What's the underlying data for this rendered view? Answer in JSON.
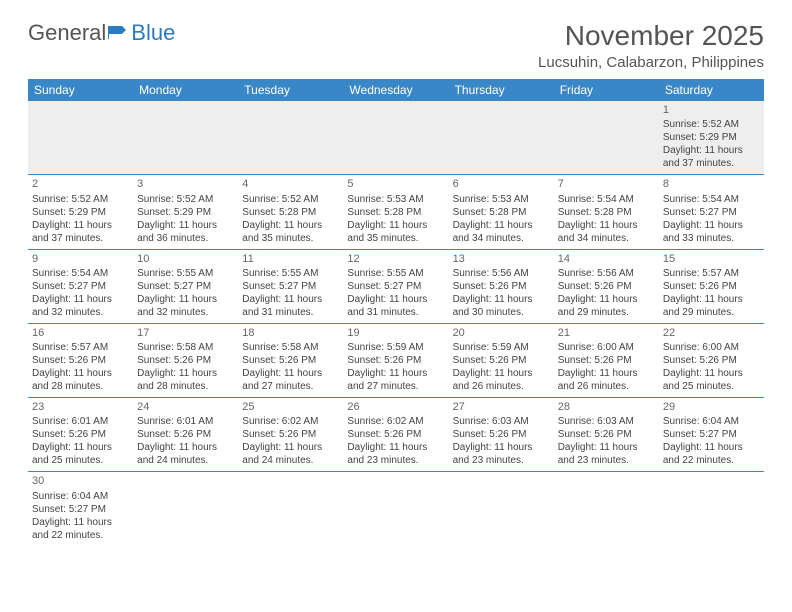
{
  "logo": {
    "text1": "General",
    "text2": "Blue"
  },
  "title": "November 2025",
  "location": "Lucsuhin, Calabarzon, Philippines",
  "header_bg": "#3a87c7",
  "header_fg": "#ffffff",
  "day_border": "#3a87c7",
  "weekdays": [
    "Sunday",
    "Monday",
    "Tuesday",
    "Wednesday",
    "Thursday",
    "Friday",
    "Saturday"
  ],
  "weeks": [
    [
      null,
      null,
      null,
      null,
      null,
      null,
      {
        "n": "1",
        "sr": "5:52 AM",
        "ss": "5:29 PM",
        "dl": "11 hours and 37 minutes."
      }
    ],
    [
      {
        "n": "2",
        "sr": "5:52 AM",
        "ss": "5:29 PM",
        "dl": "11 hours and 37 minutes."
      },
      {
        "n": "3",
        "sr": "5:52 AM",
        "ss": "5:29 PM",
        "dl": "11 hours and 36 minutes."
      },
      {
        "n": "4",
        "sr": "5:52 AM",
        "ss": "5:28 PM",
        "dl": "11 hours and 35 minutes."
      },
      {
        "n": "5",
        "sr": "5:53 AM",
        "ss": "5:28 PM",
        "dl": "11 hours and 35 minutes."
      },
      {
        "n": "6",
        "sr": "5:53 AM",
        "ss": "5:28 PM",
        "dl": "11 hours and 34 minutes."
      },
      {
        "n": "7",
        "sr": "5:54 AM",
        "ss": "5:28 PM",
        "dl": "11 hours and 34 minutes."
      },
      {
        "n": "8",
        "sr": "5:54 AM",
        "ss": "5:27 PM",
        "dl": "11 hours and 33 minutes."
      }
    ],
    [
      {
        "n": "9",
        "sr": "5:54 AM",
        "ss": "5:27 PM",
        "dl": "11 hours and 32 minutes."
      },
      {
        "n": "10",
        "sr": "5:55 AM",
        "ss": "5:27 PM",
        "dl": "11 hours and 32 minutes."
      },
      {
        "n": "11",
        "sr": "5:55 AM",
        "ss": "5:27 PM",
        "dl": "11 hours and 31 minutes."
      },
      {
        "n": "12",
        "sr": "5:55 AM",
        "ss": "5:27 PM",
        "dl": "11 hours and 31 minutes."
      },
      {
        "n": "13",
        "sr": "5:56 AM",
        "ss": "5:26 PM",
        "dl": "11 hours and 30 minutes."
      },
      {
        "n": "14",
        "sr": "5:56 AM",
        "ss": "5:26 PM",
        "dl": "11 hours and 29 minutes."
      },
      {
        "n": "15",
        "sr": "5:57 AM",
        "ss": "5:26 PM",
        "dl": "11 hours and 29 minutes."
      }
    ],
    [
      {
        "n": "16",
        "sr": "5:57 AM",
        "ss": "5:26 PM",
        "dl": "11 hours and 28 minutes."
      },
      {
        "n": "17",
        "sr": "5:58 AM",
        "ss": "5:26 PM",
        "dl": "11 hours and 28 minutes."
      },
      {
        "n": "18",
        "sr": "5:58 AM",
        "ss": "5:26 PM",
        "dl": "11 hours and 27 minutes."
      },
      {
        "n": "19",
        "sr": "5:59 AM",
        "ss": "5:26 PM",
        "dl": "11 hours and 27 minutes."
      },
      {
        "n": "20",
        "sr": "5:59 AM",
        "ss": "5:26 PM",
        "dl": "11 hours and 26 minutes."
      },
      {
        "n": "21",
        "sr": "6:00 AM",
        "ss": "5:26 PM",
        "dl": "11 hours and 26 minutes."
      },
      {
        "n": "22",
        "sr": "6:00 AM",
        "ss": "5:26 PM",
        "dl": "11 hours and 25 minutes."
      }
    ],
    [
      {
        "n": "23",
        "sr": "6:01 AM",
        "ss": "5:26 PM",
        "dl": "11 hours and 25 minutes."
      },
      {
        "n": "24",
        "sr": "6:01 AM",
        "ss": "5:26 PM",
        "dl": "11 hours and 24 minutes."
      },
      {
        "n": "25",
        "sr": "6:02 AM",
        "ss": "5:26 PM",
        "dl": "11 hours and 24 minutes."
      },
      {
        "n": "26",
        "sr": "6:02 AM",
        "ss": "5:26 PM",
        "dl": "11 hours and 23 minutes."
      },
      {
        "n": "27",
        "sr": "6:03 AM",
        "ss": "5:26 PM",
        "dl": "11 hours and 23 minutes."
      },
      {
        "n": "28",
        "sr": "6:03 AM",
        "ss": "5:26 PM",
        "dl": "11 hours and 23 minutes."
      },
      {
        "n": "29",
        "sr": "6:04 AM",
        "ss": "5:27 PM",
        "dl": "11 hours and 22 minutes."
      }
    ],
    [
      {
        "n": "30",
        "sr": "6:04 AM",
        "ss": "5:27 PM",
        "dl": "11 hours and 22 minutes."
      },
      null,
      null,
      null,
      null,
      null,
      null
    ]
  ],
  "labels": {
    "sunrise": "Sunrise:",
    "sunset": "Sunset:",
    "daylight": "Daylight:"
  }
}
